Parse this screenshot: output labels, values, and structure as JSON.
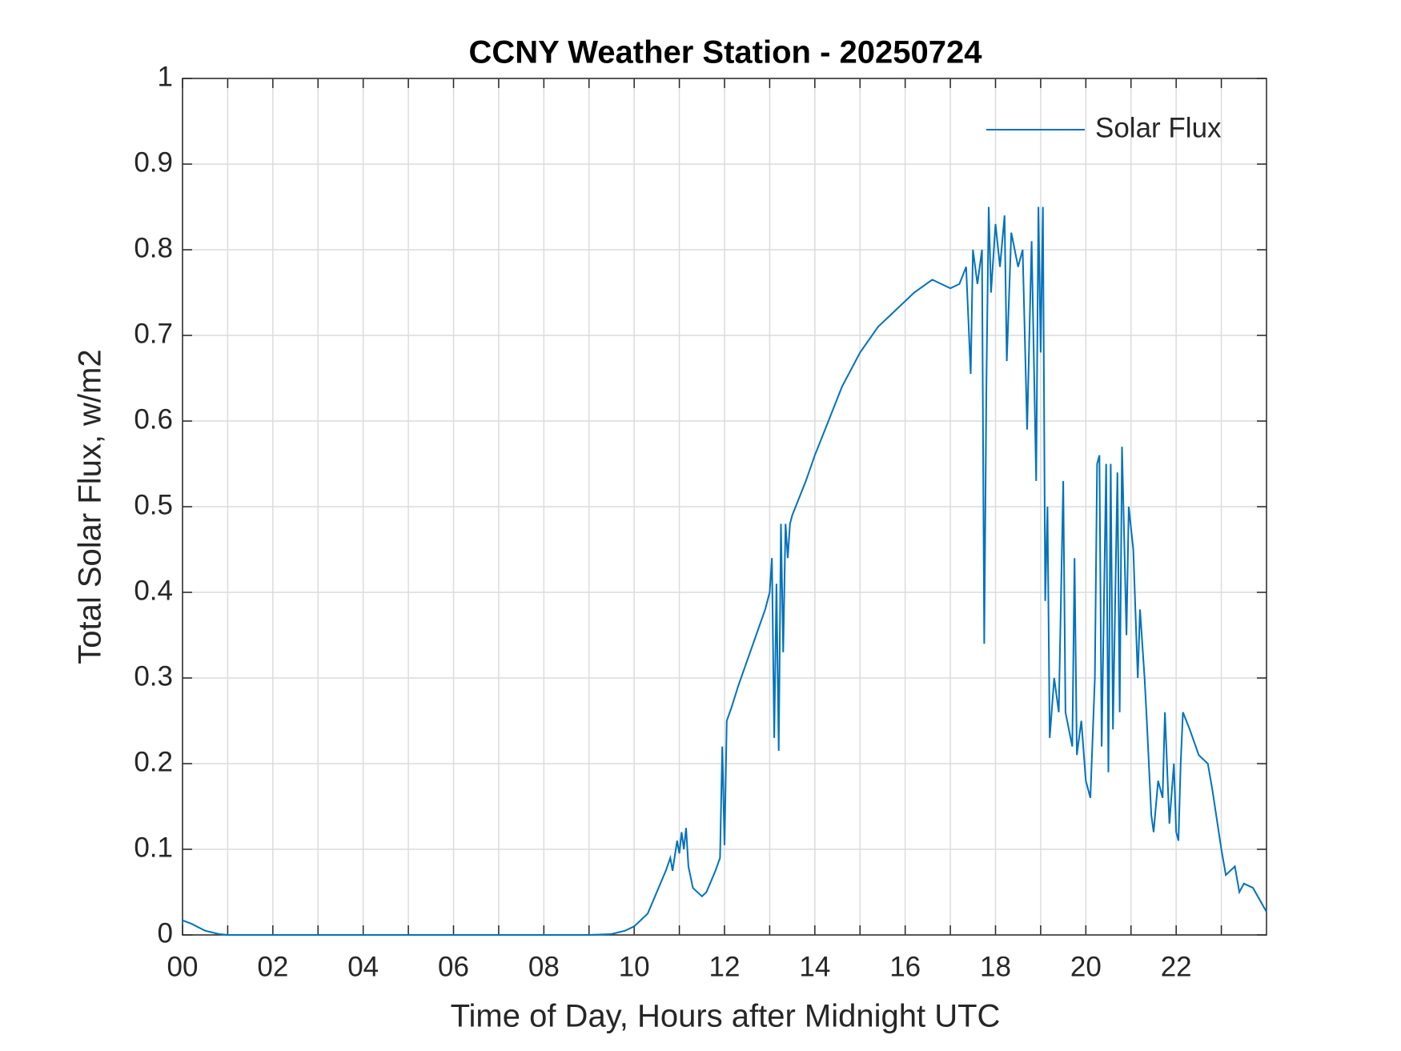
{
  "chart_data": {
    "type": "line",
    "title": "CCNY Weather Station - 20250724",
    "x_label": "Time of Day, Hours after Midnight UTC",
    "y_label": "Total Solar Flux, w/m2",
    "xlim": [
      0,
      24
    ],
    "ylim": [
      0,
      1
    ],
    "xticks": [
      {
        "value": 0,
        "label": "00"
      },
      {
        "value": 2,
        "label": "02"
      },
      {
        "value": 4,
        "label": "04"
      },
      {
        "value": 6,
        "label": "06"
      },
      {
        "value": 8,
        "label": "08"
      },
      10,
      12,
      14,
      16,
      18,
      20,
      22
    ],
    "xminorticks": [
      1,
      3,
      5,
      7,
      9,
      11,
      13,
      15,
      17,
      19,
      21,
      23
    ],
    "yticks": [
      0,
      0.1,
      0.2,
      0.3,
      0.4,
      0.5,
      0.6,
      0.7,
      0.8,
      0.9,
      1
    ],
    "grid": true,
    "legend": "northeast",
    "series": [
      {
        "name": "Solar Flux",
        "color": "#0072bd",
        "x": [
          0,
          0.2,
          0.5,
          0.8,
          1,
          9,
          9.5,
          9.8,
          10,
          10.3,
          10.5,
          10.7,
          10.8,
          10.85,
          10.95,
          11,
          11.05,
          11.1,
          11.15,
          11.2,
          11.3,
          11.5,
          11.6,
          11.8,
          11.9,
          11.95,
          12,
          12.05,
          12.15,
          12.3,
          12.5,
          12.7,
          12.9,
          13,
          13.05,
          13.1,
          13.15,
          13.2,
          13.25,
          13.3,
          13.35,
          13.4,
          13.45,
          13.5,
          13.8,
          14,
          14.3,
          14.6,
          15,
          15.4,
          15.8,
          16.2,
          16.6,
          17,
          17.2,
          17.35,
          17.45,
          17.5,
          17.6,
          17.7,
          17.75,
          17.8,
          17.85,
          17.9,
          18,
          18.1,
          18.2,
          18.25,
          18.35,
          18.5,
          18.6,
          18.7,
          18.8,
          18.9,
          18.95,
          19,
          19.05,
          19.1,
          19.15,
          19.2,
          19.3,
          19.4,
          19.5,
          19.55,
          19.7,
          19.75,
          19.8,
          19.9,
          20,
          20.1,
          20.2,
          20.25,
          20.3,
          20.35,
          20.45,
          20.5,
          20.55,
          20.6,
          20.7,
          20.75,
          20.8,
          20.9,
          20.95,
          21.05,
          21.15,
          21.2,
          21.3,
          21.35,
          21.45,
          21.5,
          21.6,
          21.7,
          21.75,
          21.85,
          21.95,
          22,
          22.05,
          22.1,
          22.15,
          22.3,
          22.5,
          22.7,
          22.8,
          23,
          23.1,
          23.3,
          23.4,
          23.5,
          23.7,
          24
        ],
        "values": [
          0.017,
          0.013,
          0.005,
          0.001,
          0,
          0,
          0.001,
          0.005,
          0.01,
          0.025,
          0.05,
          0.075,
          0.09,
          0.075,
          0.11,
          0.095,
          0.12,
          0.1,
          0.125,
          0.08,
          0.055,
          0.045,
          0.05,
          0.075,
          0.09,
          0.22,
          0.105,
          0.25,
          0.265,
          0.29,
          0.32,
          0.35,
          0.38,
          0.4,
          0.44,
          0.23,
          0.41,
          0.215,
          0.48,
          0.33,
          0.48,
          0.44,
          0.48,
          0.49,
          0.53,
          0.56,
          0.6,
          0.64,
          0.68,
          0.71,
          0.73,
          0.75,
          0.765,
          0.755,
          0.76,
          0.78,
          0.655,
          0.8,
          0.76,
          0.8,
          0.34,
          0.65,
          0.85,
          0.75,
          0.83,
          0.78,
          0.84,
          0.67,
          0.82,
          0.78,
          0.8,
          0.59,
          0.81,
          0.53,
          0.85,
          0.68,
          0.85,
          0.39,
          0.5,
          0.23,
          0.3,
          0.26,
          0.53,
          0.26,
          0.22,
          0.44,
          0.21,
          0.25,
          0.18,
          0.16,
          0.3,
          0.55,
          0.56,
          0.22,
          0.55,
          0.19,
          0.55,
          0.24,
          0.54,
          0.26,
          0.57,
          0.35,
          0.5,
          0.45,
          0.3,
          0.38,
          0.3,
          0.25,
          0.14,
          0.12,
          0.18,
          0.16,
          0.26,
          0.13,
          0.2,
          0.12,
          0.11,
          0.2,
          0.26,
          0.24,
          0.21,
          0.2,
          0.17,
          0.1,
          0.07,
          0.08,
          0.05,
          0.06,
          0.055,
          0.027
        ]
      }
    ]
  }
}
